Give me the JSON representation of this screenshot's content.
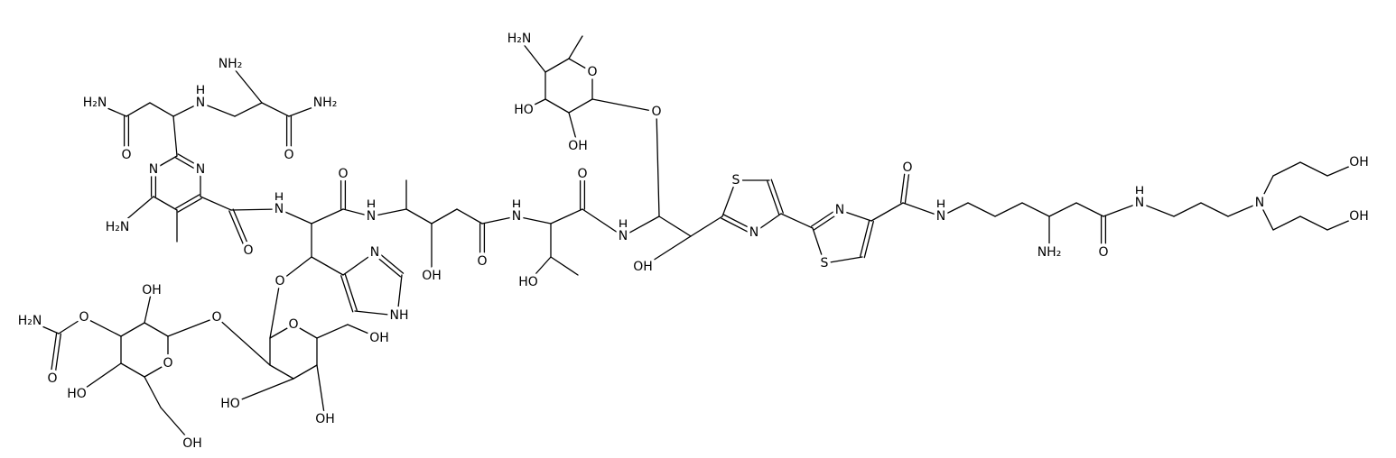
{
  "atom_labels": [
    "H₂N",
    "O",
    "H",
    "N",
    "NH₂",
    "NH₂",
    "O",
    "N",
    "N",
    "H₂N",
    "O",
    "H",
    "N",
    "O",
    "H",
    "N",
    "O",
    "N",
    "NH",
    "OH",
    "O",
    "H",
    "N",
    "O",
    "HO",
    "H",
    "N",
    "O",
    "OH",
    "H₂N",
    "O",
    "HO",
    "OH",
    "S",
    "N",
    "N",
    "S",
    "O",
    "H",
    "N",
    "NH₂",
    "O",
    "H",
    "N",
    "N",
    "OH",
    "OH",
    "H₂N",
    "O",
    "O",
    "OH",
    "O",
    "O",
    "HO",
    "OH",
    "O",
    "HO",
    "OH",
    "OH"
  ]
}
